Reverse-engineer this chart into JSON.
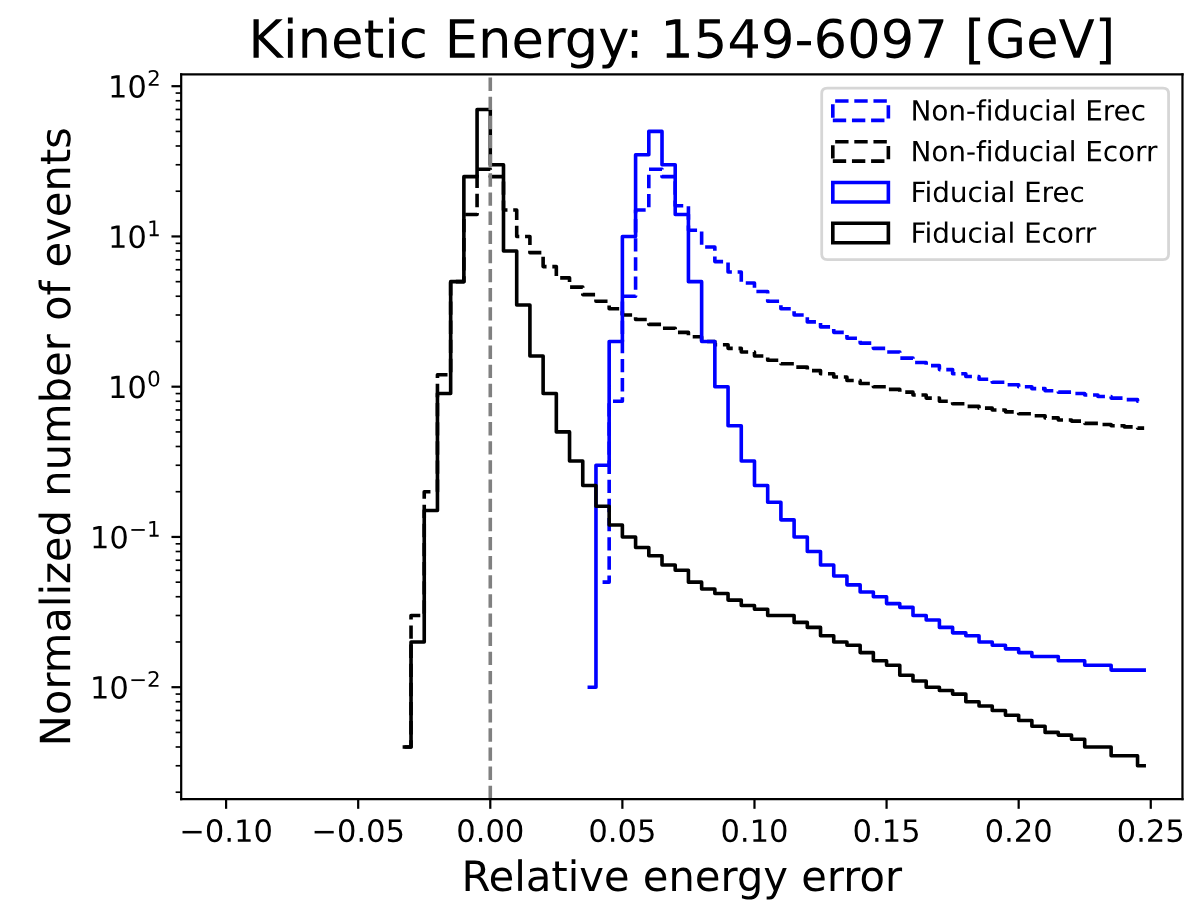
{
  "chart_data": {
    "type": "step",
    "title": "Kinetic Energy: 1549-6097 [GeV]",
    "xlabel": "Relative energy error",
    "ylabel": "Normalized number of events",
    "series": [
      {
        "name": "Non-fiducial Erec",
        "color": "#0000ff",
        "line_style": "dashed",
        "x": [
          0.0425,
          0.0475,
          0.0525,
          0.0575,
          0.0625,
          0.0675,
          0.0725,
          0.0775,
          0.0825,
          0.0875,
          0.0925,
          0.0975,
          0.1025,
          0.1075,
          0.1125,
          0.1175,
          0.1225,
          0.1275,
          0.1325,
          0.1375,
          0.1425,
          0.1475,
          0.1525,
          0.1575,
          0.1625,
          0.1675,
          0.1725,
          0.1775,
          0.1825,
          0.1875,
          0.1925,
          0.1975,
          0.2025,
          0.2075,
          0.2125,
          0.2175,
          0.2225,
          0.2275,
          0.2325,
          0.2375,
          0.2425,
          0.2475
        ],
        "values": [
          0.05,
          0.8,
          4,
          15,
          28,
          25,
          16,
          11,
          8.5,
          6.8,
          5.8,
          4.9,
          4.3,
          3.7,
          3.3,
          3.0,
          2.7,
          2.5,
          2.3,
          2.1,
          1.95,
          1.8,
          1.7,
          1.55,
          1.45,
          1.38,
          1.3,
          1.22,
          1.17,
          1.12,
          1.07,
          1.03,
          1.0,
          0.97,
          0.94,
          0.92,
          0.9,
          0.88,
          0.86,
          0.84,
          0.82,
          0.8
        ]
      },
      {
        "name": "Non-fiducial Ecorr",
        "color": "#000000",
        "line_style": "dashed",
        "x": [
          -0.0325,
          -0.0275,
          -0.0225,
          -0.0175,
          -0.0125,
          -0.0075,
          -0.0025,
          0.0025,
          0.0075,
          0.0125,
          0.0175,
          0.0225,
          0.0275,
          0.0325,
          0.0375,
          0.0425,
          0.0475,
          0.0525,
          0.0575,
          0.0625,
          0.0675,
          0.0725,
          0.0775,
          0.0825,
          0.0875,
          0.0925,
          0.0975,
          0.1025,
          0.1075,
          0.1125,
          0.1175,
          0.1225,
          0.1275,
          0.1325,
          0.1375,
          0.1425,
          0.1475,
          0.1525,
          0.1575,
          0.1625,
          0.1675,
          0.1725,
          0.1775,
          0.1825,
          0.1875,
          0.1925,
          0.1975,
          0.2025,
          0.2075,
          0.2125,
          0.2175,
          0.2225,
          0.2275,
          0.2325,
          0.2375,
          0.2425,
          0.2475
        ],
        "values": [
          0.004,
          0.03,
          0.2,
          1.2,
          5,
          14,
          28,
          25,
          15,
          10,
          7.8,
          6.3,
          5.3,
          4.6,
          4.1,
          3.7,
          3.3,
          3.0,
          2.8,
          2.6,
          2.45,
          2.3,
          2.15,
          2.0,
          1.9,
          1.8,
          1.7,
          1.6,
          1.5,
          1.42,
          1.35,
          1.28,
          1.22,
          1.16,
          1.1,
          1.05,
          1.0,
          0.96,
          0.92,
          0.88,
          0.84,
          0.8,
          0.77,
          0.74,
          0.72,
          0.7,
          0.68,
          0.66,
          0.64,
          0.62,
          0.6,
          0.59,
          0.57,
          0.56,
          0.55,
          0.54,
          0.53
        ]
      },
      {
        "name": "Fiducial Erec",
        "color": "#0000ff",
        "line_style": "solid",
        "x": [
          0.0375,
          0.0425,
          0.0475,
          0.0525,
          0.0575,
          0.0625,
          0.0675,
          0.0725,
          0.0775,
          0.0825,
          0.0875,
          0.0925,
          0.0975,
          0.1025,
          0.1075,
          0.1125,
          0.1175,
          0.1225,
          0.1275,
          0.1325,
          0.1375,
          0.1425,
          0.1475,
          0.1525,
          0.1575,
          0.1625,
          0.1675,
          0.1725,
          0.1775,
          0.1825,
          0.1875,
          0.1925,
          0.1975,
          0.2025,
          0.2075,
          0.2125,
          0.2175,
          0.2225,
          0.2275,
          0.2325,
          0.2375,
          0.2425,
          0.2475
        ],
        "values": [
          0.01,
          0.3,
          2,
          10,
          35,
          50,
          30,
          14,
          5,
          2,
          1,
          0.55,
          0.32,
          0.22,
          0.17,
          0.13,
          0.1,
          0.08,
          0.065,
          0.055,
          0.048,
          0.043,
          0.04,
          0.036,
          0.034,
          0.03,
          0.028,
          0.025,
          0.023,
          0.022,
          0.02,
          0.019,
          0.018,
          0.017,
          0.016,
          0.016,
          0.015,
          0.015,
          0.014,
          0.014,
          0.013,
          0.013,
          0.013
        ]
      },
      {
        "name": "Fiducial Ecorr",
        "color": "#000000",
        "line_style": "solid",
        "x": [
          -0.0325,
          -0.0275,
          -0.0225,
          -0.0175,
          -0.0125,
          -0.0075,
          -0.0025,
          0.0025,
          0.0075,
          0.0125,
          0.0175,
          0.0225,
          0.0275,
          0.0325,
          0.0375,
          0.0425,
          0.0475,
          0.0525,
          0.0575,
          0.0625,
          0.0675,
          0.0725,
          0.0775,
          0.0825,
          0.0875,
          0.0925,
          0.0975,
          0.1025,
          0.1075,
          0.1125,
          0.1175,
          0.1225,
          0.1275,
          0.1325,
          0.1375,
          0.1425,
          0.1475,
          0.1525,
          0.1575,
          0.1625,
          0.1675,
          0.1725,
          0.1775,
          0.1825,
          0.1875,
          0.1925,
          0.1975,
          0.2025,
          0.2075,
          0.2125,
          0.2175,
          0.2225,
          0.2275,
          0.2325,
          0.2375,
          0.2425,
          0.2475
        ],
        "values": [
          0.004,
          0.02,
          0.15,
          0.9,
          5,
          25,
          70,
          30,
          8,
          3.5,
          1.6,
          0.9,
          0.5,
          0.32,
          0.22,
          0.16,
          0.12,
          0.1,
          0.085,
          0.075,
          0.065,
          0.06,
          0.05,
          0.045,
          0.042,
          0.038,
          0.035,
          0.033,
          0.03,
          0.03,
          0.027,
          0.025,
          0.022,
          0.02,
          0.019,
          0.017,
          0.015,
          0.014,
          0.012,
          0.011,
          0.01,
          0.0095,
          0.009,
          0.008,
          0.0075,
          0.007,
          0.0065,
          0.006,
          0.0055,
          0.005,
          0.0048,
          0.0045,
          0.004,
          0.004,
          0.0035,
          0.0035,
          0.003
        ]
      }
    ],
    "log": "y",
    "xlim": [
      -0.117,
      0.262
    ],
    "ylim": [
      0.0018,
      120
    ],
    "xticks": [
      {
        "value": -0.1,
        "label": "−0.10"
      },
      {
        "value": -0.05,
        "label": "−0.05"
      },
      {
        "value": 0,
        "label": "0.00"
      },
      {
        "value": 0.05,
        "label": "0.05"
      },
      {
        "value": 0.1,
        "label": "0.10"
      },
      {
        "value": 0.15,
        "label": "0.15"
      },
      {
        "value": 0.2,
        "label": "0.20"
      },
      {
        "value": 0.25,
        "label": "0.25"
      }
    ],
    "yticks": [
      {
        "value": 0.01,
        "label": "10$^{−2}$"
      },
      {
        "value": 0.1,
        "label": "10$^{−1}$"
      },
      {
        "value": 1,
        "label": "10$^{0}$"
      },
      {
        "value": 10,
        "label": "10$^{1}$"
      },
      {
        "value": 100,
        "label": "10$^{2}$"
      }
    ],
    "ref_lines": [
      {
        "axis": "x",
        "value": 0,
        "color": "#808080",
        "line_style": "dashed"
      }
    ],
    "legend": "top right",
    "grid": false
  }
}
